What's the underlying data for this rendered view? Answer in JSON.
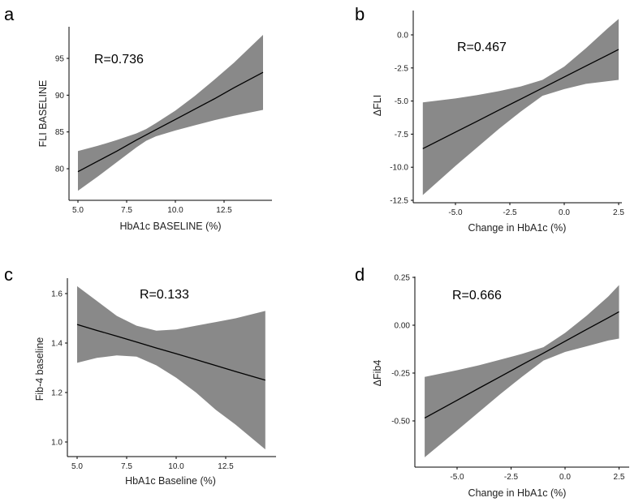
{
  "colors": {
    "band": "#898989",
    "line": "#000000",
    "axis": "#000000"
  },
  "chart_data": [
    {
      "panel": "a",
      "type": "line",
      "annotation": "R=0.736",
      "xlabel": "HbA1c BASELINE (%)",
      "ylabel": "FLI BASELINE",
      "xticks": [
        "5.0",
        "7.5",
        "10.0",
        "12.5"
      ],
      "xtick_values": [
        5,
        7.5,
        10,
        12.5
      ],
      "yticks": [
        "80",
        "85",
        "90",
        "95"
      ],
      "ytick_values": [
        80,
        85,
        90,
        95
      ],
      "x": [
        5,
        6,
        7,
        8,
        8.5,
        9,
        10,
        11,
        12,
        13,
        14.5
      ],
      "fit": [
        79.6,
        81.0,
        82.4,
        83.9,
        84.6,
        85.3,
        86.7,
        88.1,
        89.5,
        91.0,
        93.1
      ],
      "ci_upper": [
        82.4,
        83.1,
        83.9,
        84.8,
        85.4,
        86.2,
        87.9,
        89.9,
        92.1,
        94.4,
        98.2
      ],
      "ci_lower": [
        77.0,
        78.9,
        80.9,
        82.9,
        83.8,
        84.4,
        85.2,
        85.9,
        86.6,
        87.2,
        88.0
      ]
    },
    {
      "panel": "b",
      "type": "line",
      "annotation": "R=0.467",
      "xlabel": "Change in HbA1c (%)",
      "ylabel": "ΔFLI",
      "xticks": [
        "-5.0",
        "-2.5",
        "0.0",
        "2.5"
      ],
      "xtick_values": [
        -5,
        -2.5,
        0,
        2.5
      ],
      "yticks": [
        "0.0",
        "-2.5",
        "-5.0",
        "-7.5",
        "-10.0",
        "-12.5"
      ],
      "ytick_values": [
        0,
        -2.5,
        -5,
        -7.5,
        -10,
        -12.5
      ],
      "x": [
        -6.5,
        -5,
        -4,
        -3,
        -2,
        -1,
        0,
        1,
        2,
        2.5
      ],
      "fit": [
        -8.6,
        -7.35,
        -6.52,
        -5.68,
        -4.85,
        -4.02,
        -3.18,
        -2.35,
        -1.52,
        -1.1
      ],
      "ci_upper": [
        -5.1,
        -4.8,
        -4.55,
        -4.25,
        -3.9,
        -3.4,
        -2.4,
        -1.0,
        0.5,
        1.2
      ],
      "ci_lower": [
        -12.1,
        -9.9,
        -8.5,
        -7.1,
        -5.8,
        -4.6,
        -4.1,
        -3.7,
        -3.5,
        -3.4
      ]
    },
    {
      "panel": "c",
      "type": "line",
      "annotation": "R=0.133",
      "xlabel": "HbA1c Baseline (%)",
      "ylabel": "Fib-4 baseline",
      "xticks": [
        "5.0",
        "7.5",
        "10.0",
        "12.5"
      ],
      "xtick_values": [
        5,
        7.5,
        10,
        12.5
      ],
      "yticks": [
        "1.0",
        "1.2",
        "1.4",
        "1.6"
      ],
      "ytick_values": [
        1.0,
        1.2,
        1.4,
        1.6
      ],
      "x": [
        5,
        6,
        7,
        8,
        9,
        10,
        11,
        12,
        13,
        14.5
      ],
      "fit": [
        1.475,
        1.451,
        1.428,
        1.404,
        1.38,
        1.357,
        1.333,
        1.309,
        1.285,
        1.25
      ],
      "ci_upper": [
        1.63,
        1.57,
        1.51,
        1.47,
        1.45,
        1.455,
        1.47,
        1.485,
        1.5,
        1.53
      ],
      "ci_lower": [
        1.32,
        1.34,
        1.35,
        1.345,
        1.31,
        1.26,
        1.2,
        1.13,
        1.07,
        0.97
      ]
    },
    {
      "panel": "d",
      "type": "line",
      "annotation": "R=0.666",
      "xlabel": "Change in HbA1c (%)",
      "ylabel": "ΔFib4",
      "xticks": [
        "-5.0",
        "-2.5",
        "0.0",
        "2.5"
      ],
      "xtick_values": [
        -5,
        -2.5,
        0,
        2.5
      ],
      "yticks": [
        "0.25",
        "0.00",
        "-0.25",
        "-0.50"
      ],
      "ytick_values": [
        0.25,
        0,
        -0.25,
        -0.5
      ],
      "x": [
        -6.5,
        -5,
        -4,
        -3,
        -2,
        -1,
        0,
        1,
        2,
        2.5
      ],
      "fit": [
        -0.485,
        -0.392,
        -0.33,
        -0.269,
        -0.207,
        -0.146,
        -0.084,
        -0.022,
        0.039,
        0.07
      ],
      "ci_upper": [
        -0.27,
        -0.235,
        -0.21,
        -0.18,
        -0.15,
        -0.115,
        -0.04,
        0.05,
        0.15,
        0.21
      ],
      "ci_lower": [
        -0.69,
        -0.55,
        -0.455,
        -0.36,
        -0.27,
        -0.185,
        -0.14,
        -0.11,
        -0.08,
        -0.07
      ]
    }
  ]
}
